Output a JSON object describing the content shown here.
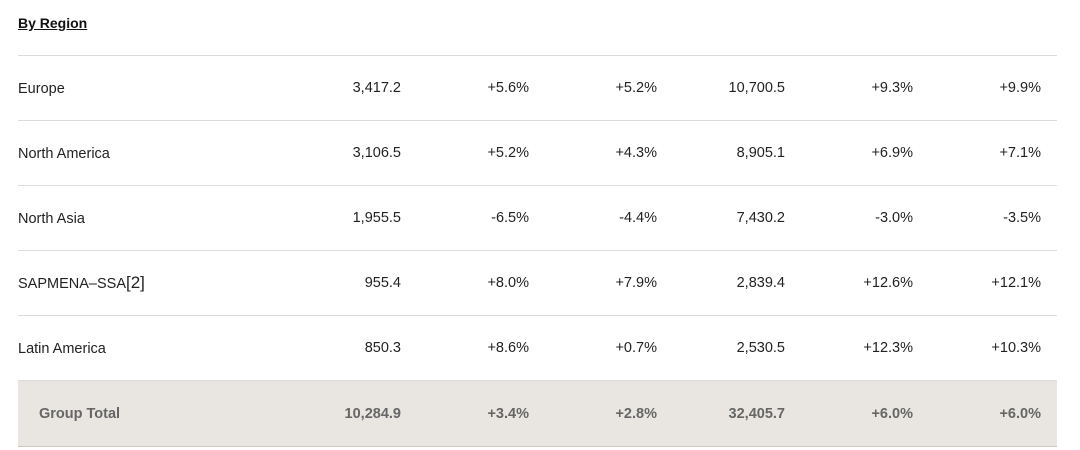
{
  "section": {
    "title": "By Region"
  },
  "rows": [
    {
      "region": "Europe",
      "footnote": "",
      "values": [
        "3,417.2",
        "+5.6%",
        "+5.2%",
        "10,700.5",
        "+9.3%",
        "+9.9%"
      ]
    },
    {
      "region": "North America",
      "footnote": "",
      "values": [
        "3,106.5",
        "+5.2%",
        "+4.3%",
        "8,905.1",
        "+6.9%",
        "+7.1%"
      ]
    },
    {
      "region": "North Asia",
      "footnote": "",
      "values": [
        "1,955.5",
        "-6.5%",
        "-4.4%",
        "7,430.2",
        "-3.0%",
        "-3.5%"
      ]
    },
    {
      "region": "SAPMENA–SSA",
      "footnote": "[2]",
      "values": [
        "955.4",
        "+8.0%",
        "+7.9%",
        "2,839.4",
        "+12.6%",
        "+12.1%"
      ]
    },
    {
      "region": "Latin America",
      "footnote": "",
      "values": [
        "850.3",
        "+8.6%",
        "+0.7%",
        "2,530.5",
        "+12.3%",
        "+10.3%"
      ]
    }
  ],
  "total": {
    "label": "Group Total",
    "values": [
      "10,284.9",
      "+3.4%",
      "+2.8%",
      "32,405.7",
      "+6.0%",
      "+6.0%"
    ]
  }
}
